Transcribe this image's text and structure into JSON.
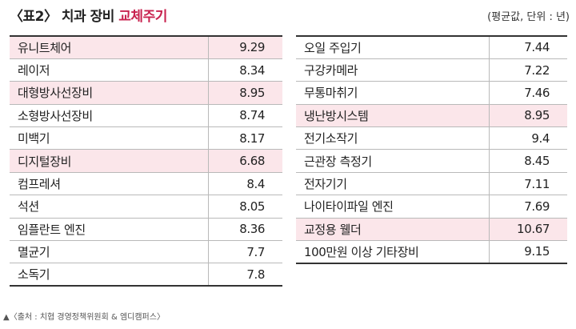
{
  "title": {
    "prefix": "〈표2〉 치과 장비 ",
    "accent": "교체주기",
    "accent_color": "#c8234f"
  },
  "unit_note": "(평균값, 단위 : 년)",
  "left_table": [
    {
      "name": "유니트체어",
      "value": "9.29",
      "highlight": true
    },
    {
      "name": "레이저",
      "value": "8.34",
      "highlight": false
    },
    {
      "name": "대형방사선장비",
      "value": "8.95",
      "highlight": true
    },
    {
      "name": "소형방사선장비",
      "value": "8.74",
      "highlight": false
    },
    {
      "name": "미백기",
      "value": "8.17",
      "highlight": false
    },
    {
      "name": "디지털장비",
      "value": "6.68",
      "highlight": true
    },
    {
      "name": "컴프레셔",
      "value": "8.4",
      "highlight": false
    },
    {
      "name": "석션",
      "value": "8.05",
      "highlight": false
    },
    {
      "name": "임플란트 엔진",
      "value": "8.36",
      "highlight": false
    },
    {
      "name": "멸균기",
      "value": "7.7",
      "highlight": false
    },
    {
      "name": "소독기",
      "value": "7.8",
      "highlight": false
    }
  ],
  "right_table": [
    {
      "name": "오일 주입기",
      "value": "7.44",
      "highlight": false
    },
    {
      "name": "구강카메라",
      "value": "7.22",
      "highlight": false
    },
    {
      "name": "무통마취기",
      "value": "7.46",
      "highlight": false
    },
    {
      "name": "냉난방시스템",
      "value": "8.95",
      "highlight": true
    },
    {
      "name": "전기소작기",
      "value": "9.4",
      "highlight": false
    },
    {
      "name": "근관장 측정기",
      "value": "8.45",
      "highlight": false
    },
    {
      "name": "전자기기",
      "value": "7.11",
      "highlight": false
    },
    {
      "name": "나이타이파일 엔진",
      "value": "7.69",
      "highlight": false
    },
    {
      "name": "교정용 웰더",
      "value": "10.67",
      "highlight": true
    },
    {
      "name": "100만원 이상 기타장비",
      "value": "9.15",
      "highlight": false
    }
  ],
  "source": "▲〈출처 : 치협 경영정책위원회 & 엠디캠퍼스〉",
  "highlight_color": "#fbe6ea"
}
